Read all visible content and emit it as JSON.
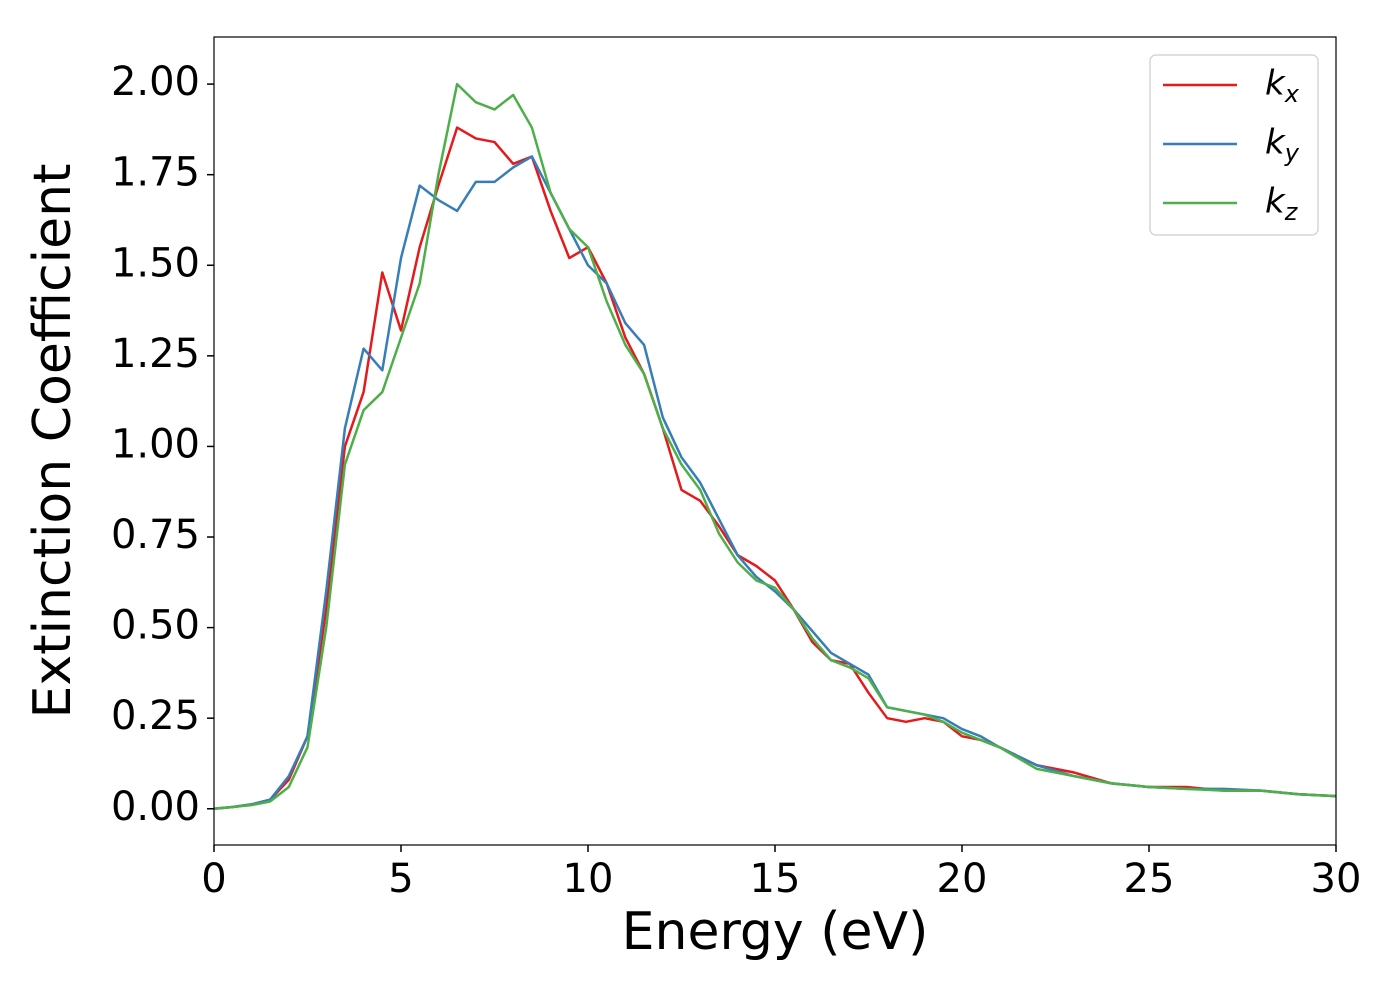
{
  "chart_data": {
    "type": "line",
    "xlabel": "Energy (eV)",
    "ylabel": "Extinction Coefficient",
    "xlim": [
      0,
      30
    ],
    "ylim": [
      -0.1,
      2.13
    ],
    "xticks": [
      0,
      5,
      10,
      15,
      20,
      25,
      30
    ],
    "yticks": [
      {
        "value": 0,
        "label": "0.00"
      },
      0.25,
      {
        "value": 0.5,
        "label": "0.50"
      },
      0.75,
      {
        "value": 1,
        "label": "1.00"
      },
      1.25,
      {
        "value": 1.5,
        "label": "1.50"
      },
      1.75,
      {
        "value": 2,
        "label": "2.00"
      }
    ],
    "legend": "upper right",
    "x": [
      0,
      0.5,
      1,
      1.5,
      2,
      2.5,
      3,
      3.5,
      4,
      4.5,
      5,
      5.5,
      6,
      6.5,
      7,
      7.5,
      8,
      8.5,
      9,
      9.5,
      10,
      10.5,
      11,
      11.5,
      12,
      12.5,
      13,
      13.5,
      14,
      14.5,
      15,
      15.5,
      16,
      16.5,
      17,
      17.5,
      18,
      18.5,
      19,
      19.5,
      20,
      20.5,
      21,
      22,
      23,
      24,
      25,
      26,
      27,
      28,
      29,
      30
    ],
    "series": [
      {
        "name": "kx",
        "color": "#e41a1c",
        "values": [
          0,
          0.005,
          0.012,
          0.025,
          0.08,
          0.2,
          0.55,
          1.0,
          1.15,
          1.48,
          1.32,
          1.55,
          1.72,
          1.88,
          1.85,
          1.84,
          1.78,
          1.8,
          1.65,
          1.52,
          1.55,
          1.45,
          1.3,
          1.2,
          1.05,
          0.88,
          0.85,
          0.78,
          0.7,
          0.67,
          0.63,
          0.55,
          0.46,
          0.41,
          0.4,
          0.32,
          0.25,
          0.24,
          0.25,
          0.24,
          0.2,
          0.19,
          0.17,
          0.12,
          0.1,
          0.07,
          0.06,
          0.06,
          0.05,
          0.05,
          0.04,
          0.035
        ]
      },
      {
        "name": "ky",
        "color": "#377eb8",
        "values": [
          0,
          0.005,
          0.012,
          0.025,
          0.09,
          0.2,
          0.6,
          1.05,
          1.27,
          1.21,
          1.52,
          1.72,
          1.68,
          1.65,
          1.73,
          1.73,
          1.77,
          1.8,
          1.7,
          1.6,
          1.5,
          1.45,
          1.34,
          1.28,
          1.08,
          0.97,
          0.9,
          0.8,
          0.7,
          0.64,
          0.6,
          0.55,
          0.49,
          0.43,
          0.4,
          0.37,
          0.28,
          0.27,
          0.26,
          0.25,
          0.22,
          0.2,
          0.17,
          0.12,
          0.09,
          0.07,
          0.06,
          0.055,
          0.055,
          0.05,
          0.04,
          0.035
        ]
      },
      {
        "name": "kz",
        "color": "#4daf4a",
        "values": [
          0,
          0.005,
          0.01,
          0.02,
          0.06,
          0.17,
          0.5,
          0.95,
          1.1,
          1.15,
          1.3,
          1.45,
          1.75,
          2.0,
          1.95,
          1.93,
          1.97,
          1.88,
          1.7,
          1.6,
          1.55,
          1.4,
          1.28,
          1.2,
          1.05,
          0.95,
          0.88,
          0.76,
          0.68,
          0.63,
          0.61,
          0.55,
          0.47,
          0.41,
          0.39,
          0.36,
          0.28,
          0.27,
          0.26,
          0.24,
          0.21,
          0.19,
          0.17,
          0.11,
          0.09,
          0.07,
          0.06,
          0.055,
          0.05,
          0.05,
          0.04,
          0.035
        ]
      }
    ]
  }
}
